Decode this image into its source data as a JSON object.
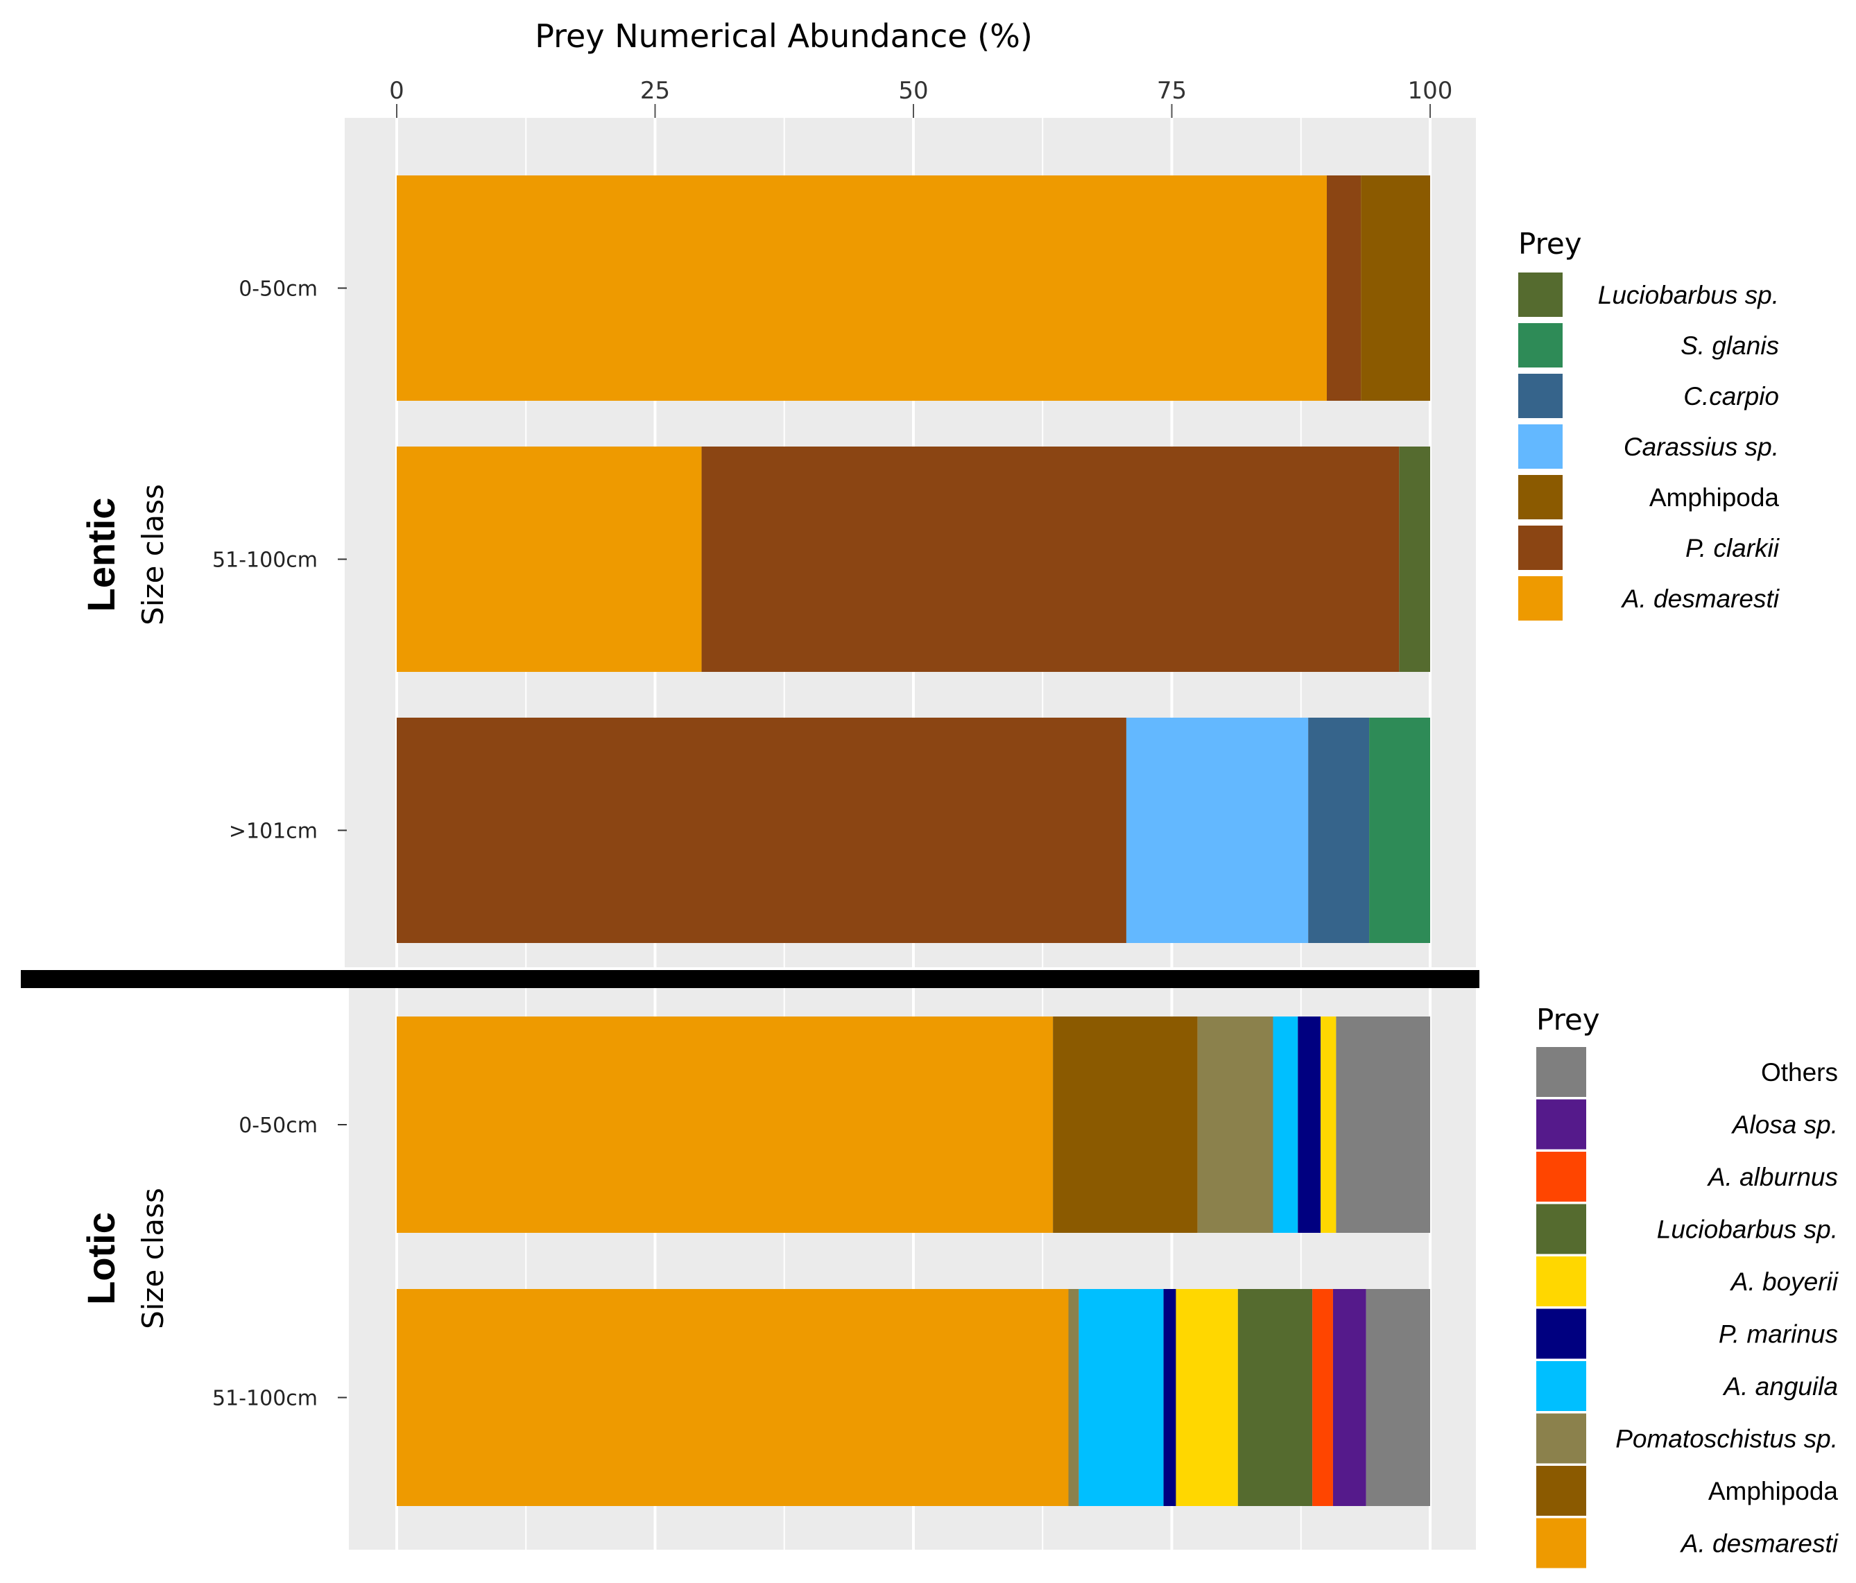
{
  "chart_data": {
    "type": "bar",
    "orientation": "horizontal",
    "stacked": true,
    "title": "Prey Numerical Abundance (%)",
    "xlim": [
      0,
      100
    ],
    "xticks": [
      0,
      25,
      50,
      75,
      100
    ],
    "grid": true,
    "panels": [
      {
        "id": "lentic",
        "label": "Lentic",
        "ylabel": "Size class",
        "categories": [
          "0-50cm",
          "51-100cm",
          ">101cm"
        ],
        "legend": {
          "title": "Prey",
          "placement": "right",
          "items": [
            {
              "name": "Luciobarbus sp.",
              "color": "#556b2f",
              "italic": true
            },
            {
              "name": "S. glanis",
              "color": "#2e8b57",
              "italic": true
            },
            {
              "name": "C.carpio",
              "color": "#36648b",
              "italic": true
            },
            {
              "name": "Carassius sp.",
              "color": "#63b8ff",
              "italic": true
            },
            {
              "name": "Amphipoda",
              "color": "#8b5a00",
              "italic": false
            },
            {
              "name": "P. clarkii",
              "color": "#8b4513",
              "italic": true
            },
            {
              "name": "A. desmaresti",
              "color": "#ee9a00",
              "italic": true
            }
          ]
        },
        "bars": [
          {
            "category": "0-50cm",
            "segments": [
              {
                "prey": "A. desmaresti",
                "value": 90
              },
              {
                "prey": "P. clarkii",
                "value": 3.3
              },
              {
                "prey": "Amphipoda",
                "value": 6.7
              }
            ]
          },
          {
            "category": "51-100cm",
            "segments": [
              {
                "prey": "A. desmaresti",
                "value": 29.5
              },
              {
                "prey": "P. clarkii",
                "value": 67.5
              },
              {
                "prey": "Luciobarbus sp.",
                "value": 3
              }
            ]
          },
          {
            "category": ">101cm",
            "segments": [
              {
                "prey": "P. clarkii",
                "value": 70.6
              },
              {
                "prey": "Carassius sp.",
                "value": 17.6
              },
              {
                "prey": "C.carpio",
                "value": 5.9
              },
              {
                "prey": "S. glanis",
                "value": 5.9
              }
            ]
          }
        ]
      },
      {
        "id": "lotic",
        "label": "Lotic",
        "ylabel": "Size class",
        "categories": [
          "0-50cm",
          "51-100cm"
        ],
        "legend": {
          "title": "Prey",
          "placement": "right",
          "items": [
            {
              "name": "Others",
              "color": "#7f7f7f",
              "italic": false
            },
            {
              "name": "Alosa sp.",
              "color": "#551a8b",
              "italic": true
            },
            {
              "name": "A. alburnus",
              "color": "#ff4500",
              "italic": true
            },
            {
              "name": "Luciobarbus sp.",
              "color": "#556b2f",
              "italic": true
            },
            {
              "name": "A. boyerii",
              "color": "#ffd700",
              "italic": true
            },
            {
              "name": "P. marinus",
              "color": "#000080",
              "italic": true
            },
            {
              "name": "A. anguila",
              "color": "#00bfff",
              "italic": true
            },
            {
              "name": "Pomatoschistus sp.",
              "color": "#8b814c",
              "italic": true
            },
            {
              "name": "Amphipoda",
              "color": "#8b5a00",
              "italic": false
            },
            {
              "name": "A. desmaresti",
              "color": "#ee9a00",
              "italic": true
            }
          ]
        },
        "bars": [
          {
            "category": "0-50cm",
            "segments": [
              {
                "prey": "A. desmaresti",
                "value": 63.5
              },
              {
                "prey": "Amphipoda",
                "value": 14
              },
              {
                "prey": "Pomatoschistus sp.",
                "value": 7.3
              },
              {
                "prey": "A. anguila",
                "value": 2.4
              },
              {
                "prey": "P. marinus",
                "value": 2.2
              },
              {
                "prey": "A. boyerii",
                "value": 1.5
              },
              {
                "prey": "Others",
                "value": 9.1
              }
            ]
          },
          {
            "category": "51-100cm",
            "segments": [
              {
                "prey": "A. desmaresti",
                "value": 65
              },
              {
                "prey": "Pomatoschistus sp.",
                "value": 1
              },
              {
                "prey": "A. anguila",
                "value": 8.2
              },
              {
                "prey": "P. marinus",
                "value": 1.2
              },
              {
                "prey": "A. boyerii",
                "value": 6
              },
              {
                "prey": "Luciobarbus sp.",
                "value": 7.2
              },
              {
                "prey": "A. alburnus",
                "value": 2
              },
              {
                "prey": "Alosa sp.",
                "value": 3.2
              },
              {
                "prey": "Others",
                "value": 6.2
              }
            ]
          }
        ]
      }
    ]
  }
}
